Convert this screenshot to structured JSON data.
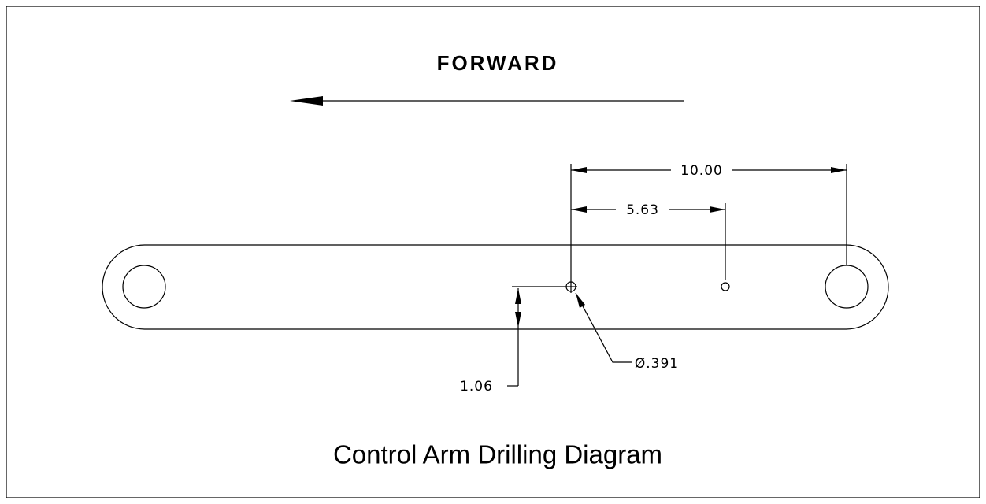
{
  "direction_label": "FORWARD",
  "dimensions": [
    {
      "label": "10.00"
    },
    {
      "label": "5.63"
    },
    {
      "label": "1.06"
    },
    {
      "label": "Ø.391"
    }
  ],
  "title": "Control Arm Drilling Diagram"
}
